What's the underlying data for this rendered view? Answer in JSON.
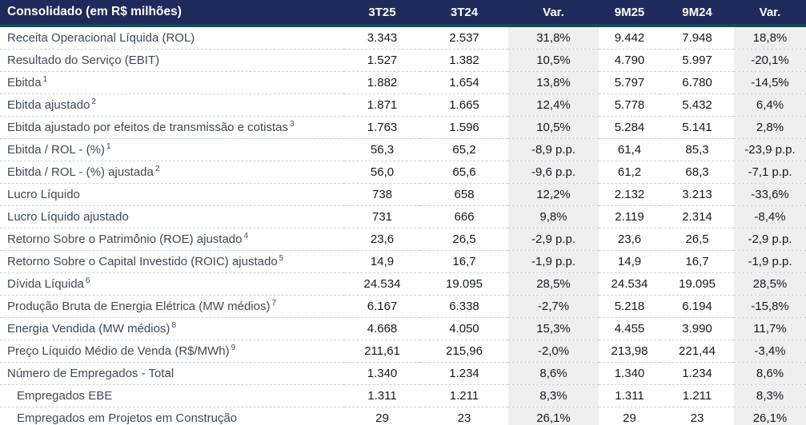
{
  "table": {
    "title": "Consolidado (em R$ milhões)",
    "columns": [
      "3T25",
      "3T24",
      "Var.",
      "9M25",
      "9M24",
      "Var."
    ],
    "rows": [
      {
        "label": "Receita Operacional Líquida (ROL)",
        "sup": "",
        "indent": false,
        "values": [
          "3.343",
          "2.537",
          "31,8%",
          "9.442",
          "7.948",
          "18,8%"
        ]
      },
      {
        "label": "Resultado do Serviço (EBIT)",
        "sup": "",
        "indent": false,
        "values": [
          "1.527",
          "1.382",
          "10,5%",
          "4.790",
          "5.997",
          "-20,1%"
        ]
      },
      {
        "label": "Ebitda",
        "sup": "1",
        "indent": false,
        "values": [
          "1.882",
          "1.654",
          "13,8%",
          "5.797",
          "6.780",
          "-14,5%"
        ]
      },
      {
        "label": "Ebitda ajustado",
        "sup": "2",
        "indent": false,
        "values": [
          "1.871",
          "1.665",
          "12,4%",
          "5.778",
          "5.432",
          "6,4%"
        ]
      },
      {
        "label": "Ebitda ajustado por efeitos de transmissão e cotistas",
        "sup": "3",
        "indent": false,
        "values": [
          "1.763",
          "1.596",
          "10,5%",
          "5.284",
          "5.141",
          "2,8%"
        ]
      },
      {
        "label": "Ebitda / ROL - (%)",
        "sup": "1",
        "indent": false,
        "values": [
          "56,3",
          "65,2",
          "-8,9 p.p.",
          "61,4",
          "85,3",
          "-23,9 p.p."
        ]
      },
      {
        "label": "Ebitda / ROL - (%) ajustada",
        "sup": "2",
        "indent": false,
        "values": [
          "56,0",
          "65,6",
          "-9,6 p.p.",
          "61,2",
          "68,3",
          "-7,1 p.p."
        ]
      },
      {
        "label": "Lucro Líquido",
        "sup": "",
        "indent": false,
        "values": [
          "738",
          "658",
          "12,2%",
          "2.132",
          "3.213",
          "-33,6%"
        ]
      },
      {
        "label": "Lucro Líquido ajustado",
        "sup": "",
        "indent": false,
        "values": [
          "731",
          "666",
          "9,8%",
          "2.119",
          "2.314",
          "-8,4%"
        ]
      },
      {
        "label": "Retorno Sobre o Patrimônio (ROE) ajustado",
        "sup": "4",
        "indent": false,
        "values": [
          "23,6",
          "26,5",
          "-2,9 p.p.",
          "23,6",
          "26,5",
          "-2,9 p.p."
        ]
      },
      {
        "label": "Retorno Sobre o Capital Investido (ROIC) ajustado",
        "sup": "5",
        "indent": false,
        "values": [
          "14,9",
          "16,7",
          "-1,9 p.p.",
          "14,9",
          "16,7",
          "-1,9 p.p."
        ]
      },
      {
        "label": "Dívida Líquida",
        "sup": "6",
        "indent": false,
        "values": [
          "24.534",
          "19.095",
          "28,5%",
          "24.534",
          "19.095",
          "28,5%"
        ]
      },
      {
        "label": "Produção Bruta de Energia Elétrica (MW médios)",
        "sup": "7",
        "indent": false,
        "values": [
          "6.167",
          "6.338",
          "-2,7%",
          "5.218",
          "6.194",
          "-15,8%"
        ]
      },
      {
        "label": "Energia Vendida (MW médios)",
        "sup": "8",
        "indent": false,
        "values": [
          "4.668",
          "4.050",
          "15,3%",
          "4.455",
          "3.990",
          "11,7%"
        ]
      },
      {
        "label": "Preço Líquido Médio de Venda (R$/MWh)",
        "sup": "9",
        "indent": false,
        "values": [
          "211,61",
          "215,96",
          "-2,0%",
          "213,98",
          "221,44",
          "-3,4%"
        ]
      },
      {
        "label": "Número de Empregados - Total",
        "sup": "",
        "indent": false,
        "values": [
          "1.340",
          "1.234",
          "8,6%",
          "1.340",
          "1.234",
          "8,6%"
        ]
      },
      {
        "label": "Empregados EBE",
        "sup": "",
        "indent": true,
        "values": [
          "1.311",
          "1.211",
          "8,3%",
          "1.311",
          "1.211",
          "8,3%"
        ]
      },
      {
        "label": "Empregados em Projetos em Construção",
        "sup": "",
        "indent": true,
        "values": [
          "29",
          "23",
          "26,1%",
          "29",
          "23",
          "26,1%"
        ]
      }
    ]
  },
  "colors": {
    "header_bg": "#1e2a5b",
    "accent_teal": "#0d4d55",
    "var_column_bg": "#efefef",
    "label_text": "#3e4a59",
    "number_text": "#15191f",
    "row_divider": "#cdd3da"
  }
}
